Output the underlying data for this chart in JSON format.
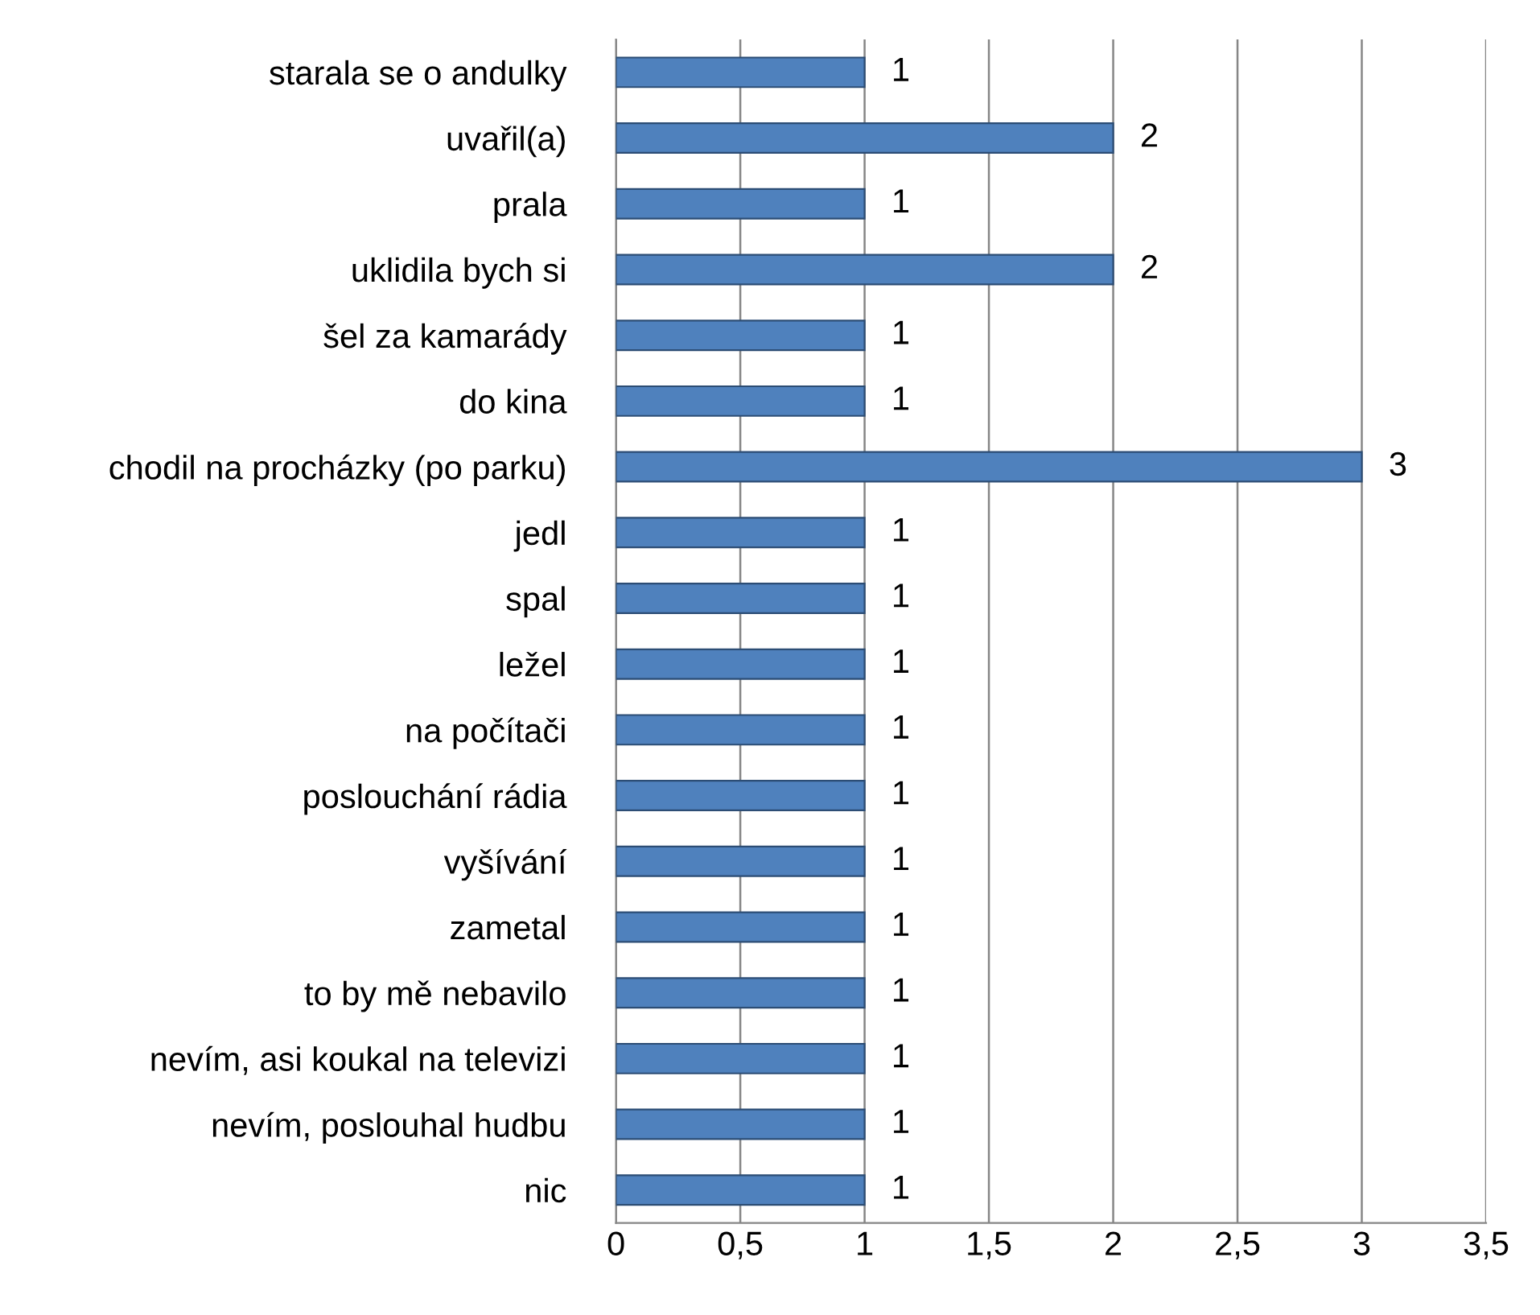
{
  "chart_data": {
    "type": "bar",
    "orientation": "horizontal",
    "categories": [
      "starala se o andulky",
      "uvařil(a)",
      "prala",
      "uklidila bych si",
      "šel za kamarády",
      "do kina",
      "chodil na procházky (po parku)",
      "jedl",
      "spal",
      "ležel",
      "na počítači",
      "poslouchání rádia",
      "vyšívání",
      "zametal",
      "to by mě nebavilo",
      "nevím, asi koukal na televizi",
      "nevím, poslouhal hudbu",
      "nic"
    ],
    "values": [
      1,
      2,
      1,
      2,
      1,
      1,
      3,
      1,
      1,
      1,
      1,
      1,
      1,
      1,
      1,
      1,
      1,
      1
    ],
    "color": "#4f81bd",
    "xlim": [
      0,
      3.5
    ],
    "xticks": [
      0,
      {
        "value": 0.5,
        "label": "0,5"
      },
      1,
      {
        "value": 1.5,
        "label": "1,5"
      },
      2,
      {
        "value": 2.5,
        "label": "2,5"
      },
      3,
      {
        "value": 3.5,
        "label": "3,5"
      }
    ],
    "grid": "x",
    "data_labels": true
  }
}
